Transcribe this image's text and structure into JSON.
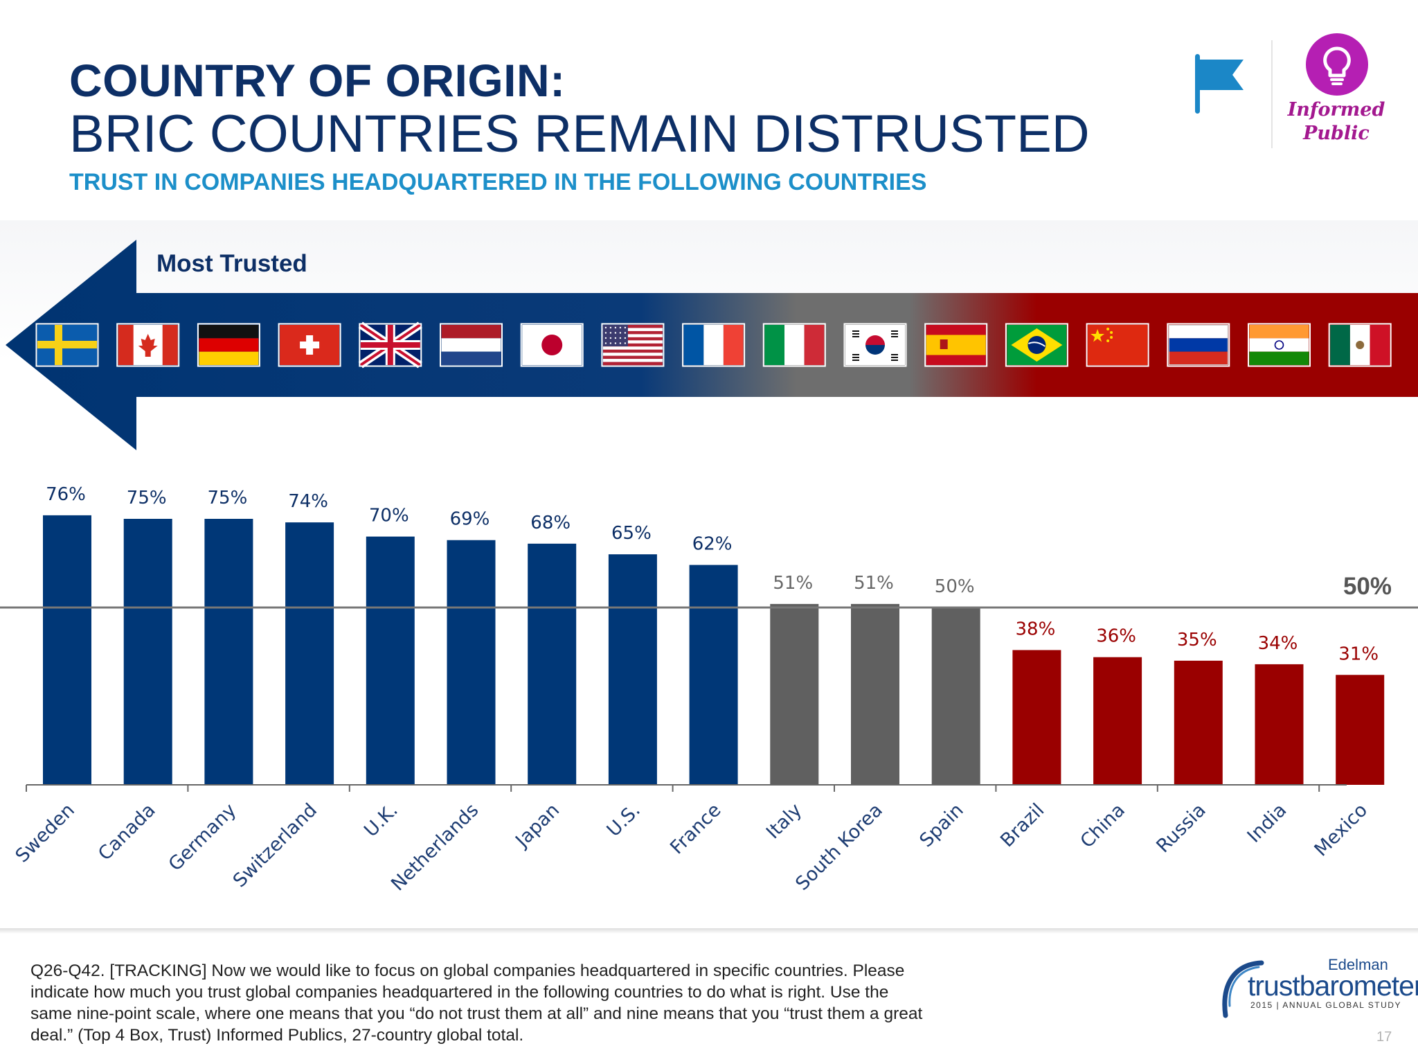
{
  "header": {
    "title_line1": "COUNTRY OF ORIGIN:",
    "title_line2": "BRIC COUNTRIES REMAIN DISTRUSTED",
    "subtitle": "TRUST IN COMPANIES HEADQUARTERED IN THE FOLLOWING COUNTRIES"
  },
  "badge": {
    "flag_icon": "flag-icon",
    "bulb_icon": "lightbulb-icon",
    "label": "Informed Public",
    "color": "#a3188f"
  },
  "arrow": {
    "label": "Most Trusted",
    "colors": {
      "trusted": "#003472",
      "neutral": "#6d6d6d",
      "distrusted": "#9a0000"
    }
  },
  "chart_data": {
    "type": "bar",
    "categories": [
      "Sweden",
      "Canada",
      "Germany",
      "Switzerland",
      "U.K.",
      "Netherlands",
      "Japan",
      "U.S.",
      "France",
      "Italy",
      "South Korea",
      "Spain",
      "Brazil",
      "China",
      "Russia",
      "India",
      "Mexico"
    ],
    "values": [
      76,
      75,
      75,
      74,
      70,
      69,
      68,
      65,
      62,
      51,
      51,
      50,
      38,
      36,
      35,
      34,
      31
    ],
    "data_labels": [
      "76%",
      "75%",
      "75%",
      "74%",
      "70%",
      "69%",
      "68%",
      "65%",
      "62%",
      "51%",
      "51%",
      "50%",
      "38%",
      "36%",
      "35%",
      "34%",
      "31%"
    ],
    "groups": [
      "trusted",
      "trusted",
      "trusted",
      "trusted",
      "trusted",
      "trusted",
      "trusted",
      "trusted",
      "trusted",
      "neutral",
      "neutral",
      "neutral",
      "distrusted",
      "distrusted",
      "distrusted",
      "distrusted",
      "distrusted"
    ],
    "group_colors": {
      "trusted": "#003777",
      "neutral": "#606060",
      "distrusted": "#9a0000"
    },
    "reference_line": {
      "value": 50,
      "label": "50%"
    },
    "flags": [
      "sweden-flag",
      "canada-flag",
      "germany-flag",
      "switzerland-flag",
      "uk-flag",
      "netherlands-flag",
      "japan-flag",
      "us-flag",
      "france-flag",
      "italy-flag",
      "south-korea-flag",
      "spain-flag",
      "brazil-flag",
      "china-flag",
      "russia-flag",
      "india-flag",
      "mexico-flag"
    ],
    "ylim": [
      0,
      80
    ],
    "grid": false
  },
  "footnote": "Q26-Q42. [TRACKING] Now we would like to focus on global companies headquartered in specific countries. Please indicate how much you trust global companies headquartered in the following countries to do what is right. Use the same nine-point scale, where one means that you “do not trust them at all” and nine means that you “trust them a great deal.” (Top 4 Box, Trust) Informed Publics, 27-country global total.",
  "logo": {
    "top": "Edelman",
    "main": "trustbarometer",
    "sub": "2015 | ANNUAL GLOBAL STUDY"
  },
  "page_number": "17"
}
